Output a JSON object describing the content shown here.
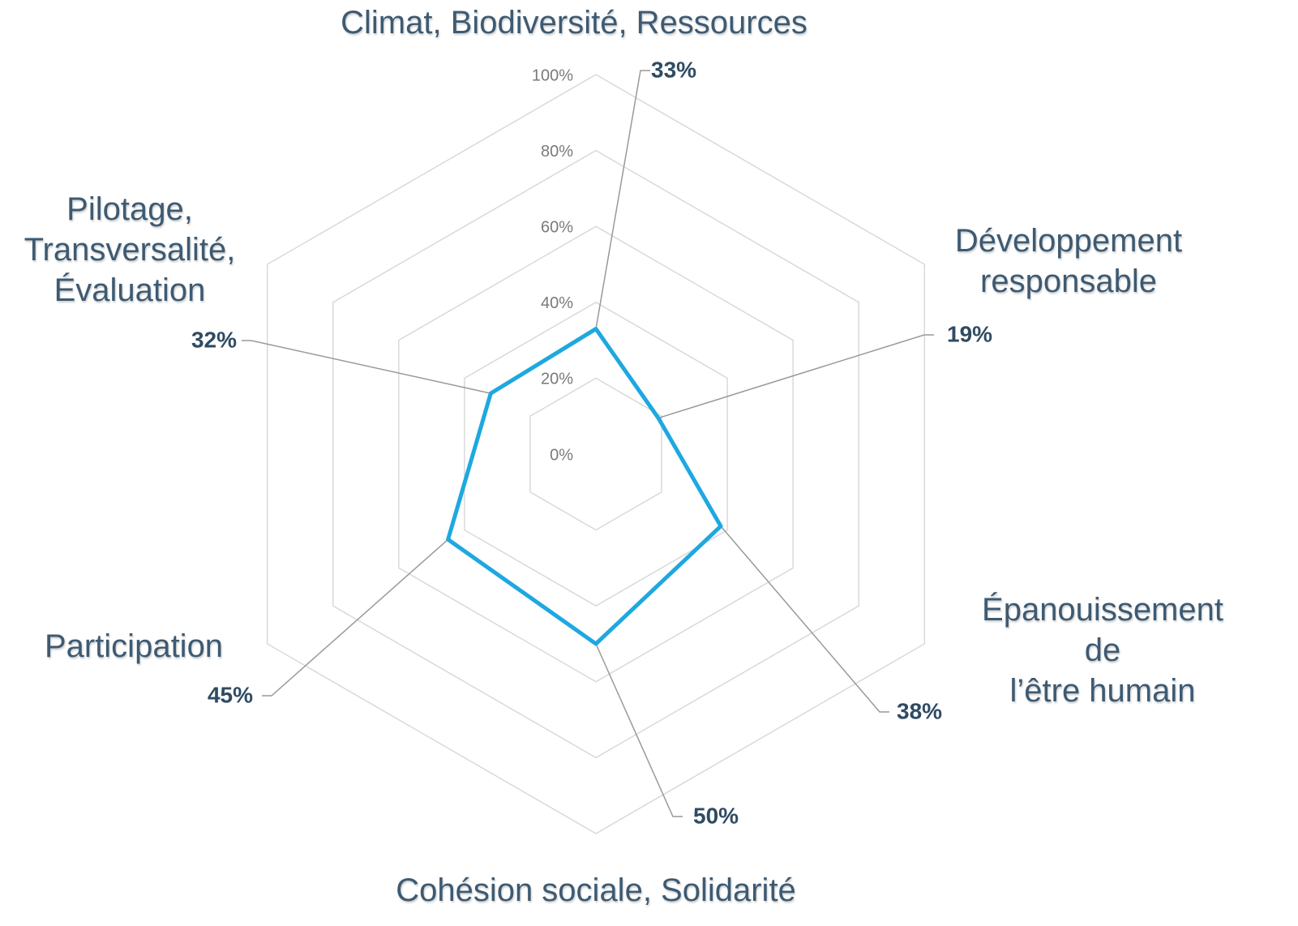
{
  "chart_data": {
    "type": "radar",
    "categories": [
      "Climat, Biodiversité, Ressources",
      "Développement\nresponsable",
      "Épanouissement de\nl’être humain",
      "Cohésion sociale, Solidarité",
      "Participation",
      "Pilotage,\nTransversalité,\nÉvaluation"
    ],
    "series": [
      {
        "color": "#1ea8e0",
        "values": [
          33,
          19,
          38,
          50,
          45,
          32
        ],
        "value_labels": [
          "33%",
          "19%",
          "38%",
          "50%",
          "45%",
          "32%"
        ]
      }
    ],
    "ylim": [
      0,
      100
    ],
    "yticks": [
      {
        "value": 0,
        "label": "0%"
      },
      {
        "value": 20,
        "label": "20%"
      },
      {
        "value": 40,
        "label": "40%"
      },
      {
        "value": 60,
        "label": "60%"
      },
      {
        "value": 80,
        "label": "80%"
      },
      {
        "value": 100,
        "label": "100%"
      }
    ],
    "grid": true
  }
}
